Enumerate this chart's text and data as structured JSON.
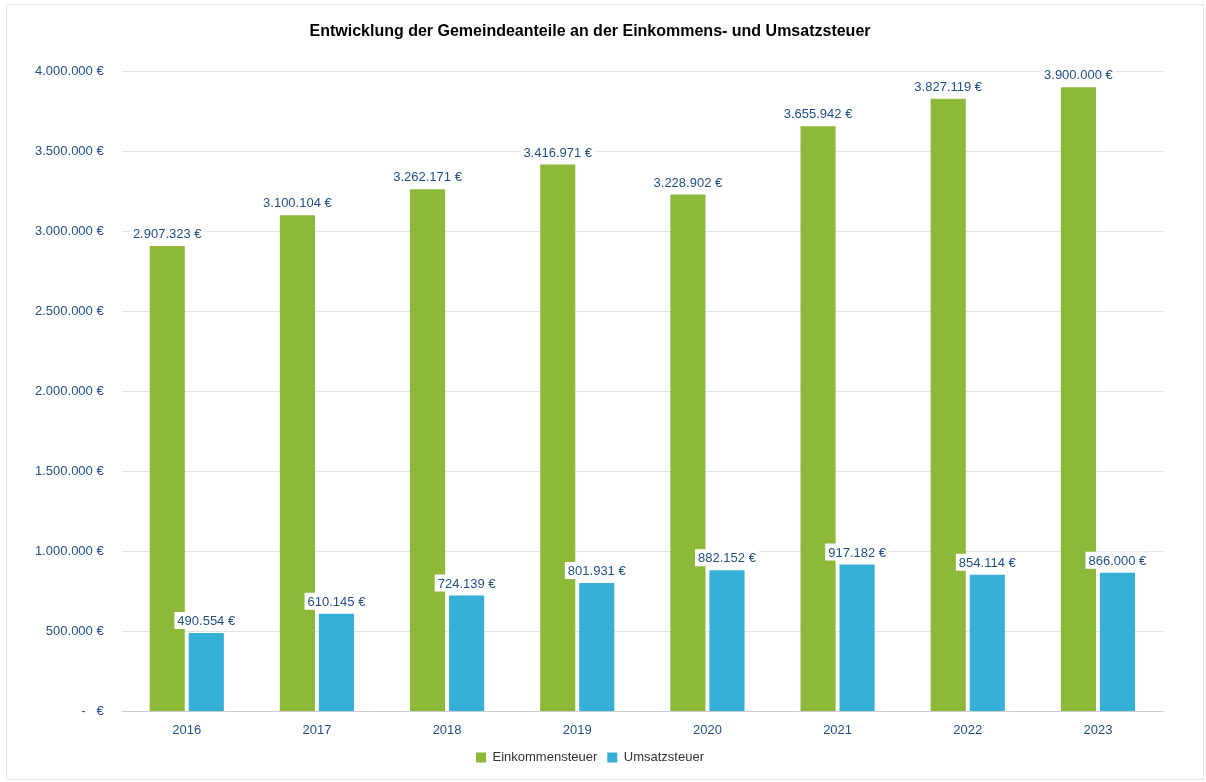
{
  "chart_data": {
    "type": "bar",
    "title": "Entwicklung der Gemeindeanteile an der Einkommens- und Umsatzsteuer",
    "categories": [
      "2016",
      "2017",
      "2018",
      "2019",
      "2020",
      "2021",
      "2022",
      "2023"
    ],
    "series": [
      {
        "name": "Einkommensteuer",
        "color": "#8db83a",
        "values": [
          2907323,
          3100104,
          3262171,
          3416971,
          3228902,
          3655942,
          3827119,
          3900000
        ],
        "value_labels": [
          "2.907.323 €",
          "3.100.104 €",
          "3.262.171 €",
          "3.416.971 €",
          "3.228.902 €",
          "3.655.942 €",
          "3.827.119 €",
          "3.900.000 €"
        ]
      },
      {
        "name": "Umsatzsteuer",
        "color": "#36b0d6",
        "values": [
          490554,
          610145,
          724139,
          801931,
          882152,
          917182,
          854114,
          866000
        ],
        "value_labels": [
          "490.554 €",
          "610.145 €",
          "724.139 €",
          "801.931 €",
          "882.152 €",
          "917.182 €",
          "854.114 €",
          "866.000 €"
        ]
      }
    ],
    "ylim": [
      0,
      4000000
    ],
    "yticks": [
      {
        "value": 0,
        "label": "-   €"
      },
      {
        "value": 500000,
        "label": "500.000 €"
      },
      {
        "value": 1000000,
        "label": "1.000.000 €"
      },
      {
        "value": 1500000,
        "label": "1.500.000 €"
      },
      {
        "value": 2000000,
        "label": "2.000.000 €"
      },
      {
        "value": 2500000,
        "label": "2.500.000 €"
      },
      {
        "value": 3000000,
        "label": "3.000.000 €"
      },
      {
        "value": 3500000,
        "label": "3.500.000 €"
      },
      {
        "value": 4000000,
        "label": "4.000.000 €"
      }
    ],
    "grid": "y",
    "legend": "bottom"
  }
}
